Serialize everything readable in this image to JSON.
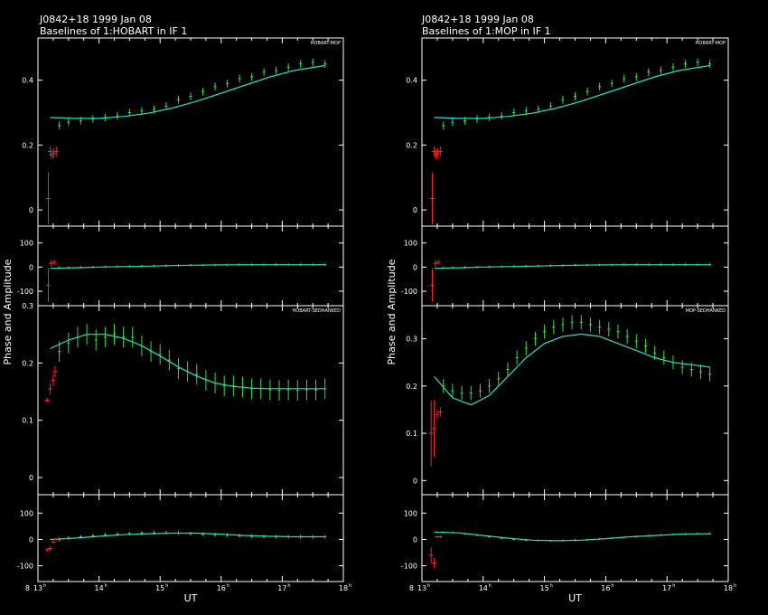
{
  "chart_data": [
    {
      "type": "scatter",
      "title": "J0842+18  1999 Jan 08",
      "subtitle": "Baselines of 1:HOBART in IF 1",
      "ylabel": "Phase and Amplitude",
      "xlabel": "UT",
      "x_ticks": [
        "13",
        "14",
        "15",
        "16",
        "17",
        "18"
      ],
      "x_prefix": "8",
      "xlim": [
        13.0,
        18.0
      ],
      "panels": [
        {
          "baseline": "HOBART-MOP",
          "kind": "amplitude",
          "ylim": [
            -0.05,
            0.53
          ],
          "y_ticks": [
            "0",
            "0.2",
            "0.4"
          ],
          "model": {
            "x": [
              13.2,
              13.6,
              14.0,
              14.4,
              14.8,
              15.2,
              15.6,
              16.0,
              16.4,
              16.8,
              17.2,
              17.7
            ],
            "y": [
              0.285,
              0.282,
              0.282,
              0.288,
              0.298,
              0.314,
              0.335,
              0.36,
              0.385,
              0.41,
              0.43,
              0.445
            ]
          },
          "flagged": {
            "x": [
              13.17,
              13.2,
              13.23,
              13.26,
              13.3
            ],
            "y": [
              0.035,
              0.18,
              0.17,
              0.175,
              0.18
            ],
            "err": [
              0.08,
              0.015,
              0.015,
              0.015,
              0.015
            ]
          },
          "data": {
            "x": [
              13.35,
              13.5,
              13.7,
              13.9,
              14.1,
              14.3,
              14.5,
              14.7,
              14.9,
              15.1,
              15.3,
              15.5,
              15.7,
              15.9,
              16.1,
              16.3,
              16.5,
              16.7,
              16.9,
              17.1,
              17.3,
              17.5,
              17.7
            ],
            "y": [
              0.26,
              0.27,
              0.275,
              0.28,
              0.285,
              0.29,
              0.3,
              0.305,
              0.31,
              0.32,
              0.34,
              0.35,
              0.365,
              0.38,
              0.39,
              0.405,
              0.41,
              0.425,
              0.43,
              0.44,
              0.45,
              0.455,
              0.45
            ],
            "err": 0.012
          }
        },
        {
          "baseline": "",
          "kind": "phase",
          "ylim": [
            -160,
            170
          ],
          "y_ticks": [
            "-100",
            "0",
            "100"
          ],
          "model": {
            "x": [
              13.2,
              13.6,
              14.0,
              14.4,
              14.8,
              15.2,
              15.6,
              16.0,
              16.4,
              16.8,
              17.2,
              17.7
            ],
            "y": [
              -5,
              -3,
              0,
              2,
              4,
              6,
              8,
              9,
              10,
              10,
              10,
              10
            ]
          },
          "flagged": {
            "x": [
              13.17,
              13.22,
              13.27
            ],
            "y": [
              -75,
              15,
              20
            ],
            "err": [
              70,
              15,
              10
            ]
          },
          "data": {
            "x": [
              13.35,
              13.5,
              13.7,
              13.9,
              14.1,
              14.3,
              14.5,
              14.7,
              14.9,
              15.1,
              15.3,
              15.5,
              15.7,
              15.9,
              16.1,
              16.3,
              16.5,
              16.7,
              16.9,
              17.1,
              17.3,
              17.5,
              17.7
            ],
            "y": [
              -3,
              -2,
              -1,
              0,
              1,
              2,
              3,
              4,
              5,
              6,
              7,
              8,
              8,
              9,
              9,
              10,
              10,
              10,
              10,
              10,
              10,
              10,
              10
            ],
            "err": 5
          }
        },
        {
          "baseline": "HOBART-SEDHANKED",
          "kind": "amplitude",
          "ylim": [
            -0.03,
            0.3
          ],
          "y_ticks": [
            "0",
            "0.1",
            "0.2",
            "0.3"
          ],
          "model": {
            "x": [
              13.2,
              13.5,
              13.8,
              14.1,
              14.4,
              14.7,
              15.0,
              15.3,
              15.6,
              15.9,
              16.2,
              16.5,
              16.8,
              17.1,
              17.4,
              17.7
            ],
            "y": [
              0.225,
              0.24,
              0.25,
              0.25,
              0.243,
              0.23,
              0.212,
              0.193,
              0.177,
              0.165,
              0.159,
              0.156,
              0.155,
              0.155,
              0.155,
              0.155
            ]
          },
          "flagged": {
            "x": [
              13.15,
              13.2,
              13.25,
              13.28
            ],
            "y": [
              0.135,
              0.155,
              0.17,
              0.185
            ],
            "err": [
              0.004,
              0.01,
              0.01,
              0.01
            ]
          },
          "data": {
            "x": [
              13.35,
              13.5,
              13.65,
              13.8,
              13.95,
              14.1,
              14.25,
              14.4,
              14.55,
              14.7,
              14.85,
              15.0,
              15.15,
              15.3,
              15.45,
              15.6,
              15.75,
              15.9,
              16.05,
              16.2,
              16.35,
              16.5,
              16.65,
              16.8,
              16.95,
              17.1,
              17.25,
              17.4,
              17.55,
              17.7
            ],
            "y": [
              0.22,
              0.235,
              0.245,
              0.25,
              0.24,
              0.245,
              0.25,
              0.245,
              0.245,
              0.23,
              0.22,
              0.215,
              0.205,
              0.19,
              0.185,
              0.18,
              0.17,
              0.165,
              0.16,
              0.16,
              0.158,
              0.155,
              0.155,
              0.153,
              0.152,
              0.153,
              0.152,
              0.153,
              0.153,
              0.155
            ],
            "err": 0.018
          }
        },
        {
          "baseline": "",
          "kind": "phase",
          "ylim": [
            -160,
            170
          ],
          "y_ticks": [
            "-100",
            "0",
            "100"
          ],
          "model": {
            "x": [
              13.2,
              13.6,
              14.0,
              14.4,
              14.8,
              15.2,
              15.6,
              16.0,
              16.4,
              16.8,
              17.2,
              17.7
            ],
            "y": [
              0,
              5,
              12,
              18,
              22,
              24,
              24,
              20,
              15,
              12,
              10,
              10
            ]
          },
          "flagged": {
            "x": [
              13.15,
              13.2,
              13.25,
              13.3
            ],
            "y": [
              -40,
              -35,
              -10,
              0
            ],
            "err": [
              8,
              8,
              5,
              5
            ]
          },
          "data": {
            "x": [
              13.35,
              13.5,
              13.7,
              13.9,
              14.1,
              14.3,
              14.5,
              14.7,
              14.9,
              15.1,
              15.3,
              15.5,
              15.7,
              15.9,
              16.1,
              16.3,
              16.5,
              16.7,
              16.9,
              17.1,
              17.3,
              17.5,
              17.7
            ],
            "y": [
              0,
              5,
              10,
              14,
              18,
              20,
              22,
              24,
              25,
              25,
              24,
              22,
              20,
              18,
              16,
              14,
              12,
              11,
              10,
              10,
              10,
              10,
              10
            ],
            "err": 7
          }
        }
      ]
    },
    {
      "type": "scatter",
      "title": "J0842+18  1999 Jan 08",
      "subtitle": "Baselines of 1:MOP in IF 1",
      "ylabel": "Phase and Amplitude",
      "xlabel": "UT",
      "x_ticks": [
        "13",
        "14",
        "15",
        "16",
        "17",
        "18"
      ],
      "x_prefix": "8",
      "xlim": [
        13.0,
        18.0
      ],
      "panels": [
        {
          "baseline": "HOBART-MOP",
          "kind": "amplitude",
          "ylim": [
            -0.05,
            0.53
          ],
          "y_ticks": [
            "0",
            "0.2",
            "0.4"
          ],
          "model": {
            "x": [
              13.2,
              13.6,
              14.0,
              14.4,
              14.8,
              15.2,
              15.6,
              16.0,
              16.4,
              16.8,
              17.2,
              17.7
            ],
            "y": [
              0.285,
              0.282,
              0.282,
              0.288,
              0.298,
              0.314,
              0.335,
              0.36,
              0.385,
              0.41,
              0.43,
              0.445
            ]
          },
          "flagged": {
            "x": [
              13.17,
              13.2,
              13.23,
              13.26,
              13.3
            ],
            "y": [
              0.035,
              0.18,
              0.17,
              0.175,
              0.18
            ],
            "err": [
              0.08,
              0.015,
              0.015,
              0.015,
              0.015
            ]
          },
          "data": {
            "x": [
              13.35,
              13.5,
              13.7,
              13.9,
              14.1,
              14.3,
              14.5,
              14.7,
              14.9,
              15.1,
              15.3,
              15.5,
              15.7,
              15.9,
              16.1,
              16.3,
              16.5,
              16.7,
              16.9,
              17.1,
              17.3,
              17.5,
              17.7
            ],
            "y": [
              0.26,
              0.27,
              0.275,
              0.28,
              0.285,
              0.29,
              0.3,
              0.305,
              0.31,
              0.32,
              0.34,
              0.35,
              0.365,
              0.38,
              0.39,
              0.405,
              0.41,
              0.425,
              0.43,
              0.44,
              0.45,
              0.455,
              0.45
            ],
            "err": 0.012
          }
        },
        {
          "baseline": "",
          "kind": "phase",
          "ylim": [
            -160,
            170
          ],
          "y_ticks": [
            "-100",
            "0",
            "100"
          ],
          "model": {
            "x": [
              13.2,
              13.6,
              14.0,
              14.4,
              14.8,
              15.2,
              15.6,
              16.0,
              16.4,
              16.8,
              17.2,
              17.7
            ],
            "y": [
              -5,
              -3,
              0,
              2,
              4,
              6,
              8,
              9,
              10,
              10,
              10,
              10
            ]
          },
          "flagged": {
            "x": [
              13.17,
              13.22,
              13.27
            ],
            "y": [
              -75,
              15,
              20
            ],
            "err": [
              70,
              15,
              10
            ]
          },
          "data": {
            "x": [
              13.35,
              13.5,
              13.7,
              13.9,
              14.1,
              14.3,
              14.5,
              14.7,
              14.9,
              15.1,
              15.3,
              15.5,
              15.7,
              15.9,
              16.1,
              16.3,
              16.5,
              16.7,
              16.9,
              17.1,
              17.3,
              17.5,
              17.7
            ],
            "y": [
              -3,
              -2,
              -1,
              0,
              1,
              2,
              3,
              4,
              5,
              6,
              7,
              8,
              8,
              9,
              9,
              10,
              10,
              10,
              10,
              10,
              10,
              10,
              10
            ],
            "err": 5
          }
        },
        {
          "baseline": "MOP-SEDHANKED",
          "kind": "amplitude",
          "ylim": [
            -0.03,
            0.37
          ],
          "y_ticks": [
            "0",
            "0.1",
            "0.2",
            "0.3"
          ],
          "model": {
            "x": [
              13.2,
              13.5,
              13.8,
              14.1,
              14.4,
              14.7,
              15.0,
              15.3,
              15.6,
              15.9,
              16.2,
              16.5,
              16.8,
              17.1,
              17.4,
              17.7
            ],
            "y": [
              0.22,
              0.175,
              0.16,
              0.18,
              0.22,
              0.26,
              0.29,
              0.305,
              0.31,
              0.305,
              0.29,
              0.275,
              0.26,
              0.25,
              0.245,
              0.24
            ]
          },
          "flagged": {
            "x": [
              13.15,
              13.2,
              13.25,
              13.3
            ],
            "y": [
              0.1,
              0.11,
              0.14,
              0.145
            ],
            "err": [
              0.07,
              0.06,
              0.01,
              0.01
            ]
          },
          "data": {
            "x": [
              13.35,
              13.5,
              13.65,
              13.8,
              13.95,
              14.1,
              14.25,
              14.4,
              14.55,
              14.7,
              14.85,
              15.0,
              15.15,
              15.3,
              15.45,
              15.6,
              15.75,
              15.9,
              16.05,
              16.2,
              16.35,
              16.5,
              16.65,
              16.8,
              16.95,
              17.1,
              17.25,
              17.4,
              17.55,
              17.7
            ],
            "y": [
              0.2,
              0.19,
              0.185,
              0.185,
              0.19,
              0.2,
              0.215,
              0.235,
              0.26,
              0.28,
              0.3,
              0.315,
              0.325,
              0.33,
              0.335,
              0.335,
              0.33,
              0.325,
              0.32,
              0.315,
              0.305,
              0.295,
              0.285,
              0.27,
              0.26,
              0.25,
              0.24,
              0.235,
              0.23,
              0.225
            ],
            "err": 0.015
          }
        },
        {
          "baseline": "",
          "kind": "phase",
          "ylim": [
            -160,
            170
          ],
          "y_ticks": [
            "-100",
            "0",
            "100"
          ],
          "model": {
            "x": [
              13.2,
              13.6,
              14.0,
              14.4,
              14.8,
              15.2,
              15.6,
              16.0,
              16.4,
              16.8,
              17.2,
              17.7
            ],
            "y": [
              28,
              25,
              15,
              5,
              -3,
              -5,
              -3,
              3,
              10,
              15,
              20,
              22
            ]
          },
          "flagged": {
            "x": [
              13.15,
              13.2,
              13.25,
              13.3
            ],
            "y": [
              -60,
              -90,
              10,
              10
            ],
            "err": [
              30,
              20,
              5,
              5
            ]
          },
          "data": {
            "x": [
              13.35,
              13.5,
              13.7,
              13.9,
              14.1,
              14.3,
              14.5,
              14.7,
              14.9,
              15.1,
              15.3,
              15.5,
              15.7,
              15.9,
              16.1,
              16.3,
              16.5,
              16.7,
              16.9,
              17.1,
              17.3,
              17.5,
              17.7
            ],
            "y": [
              27,
              26,
              22,
              16,
              10,
              4,
              0,
              -3,
              -4,
              -5,
              -4,
              -3,
              -1,
              2,
              5,
              8,
              11,
              14,
              17,
              19,
              21,
              22,
              22
            ],
            "err": 4
          }
        }
      ]
    }
  ],
  "colors": {
    "data": "#30e040",
    "model": "#20e0d0",
    "flagged": "#ff2020",
    "axis": "#ffffff"
  }
}
